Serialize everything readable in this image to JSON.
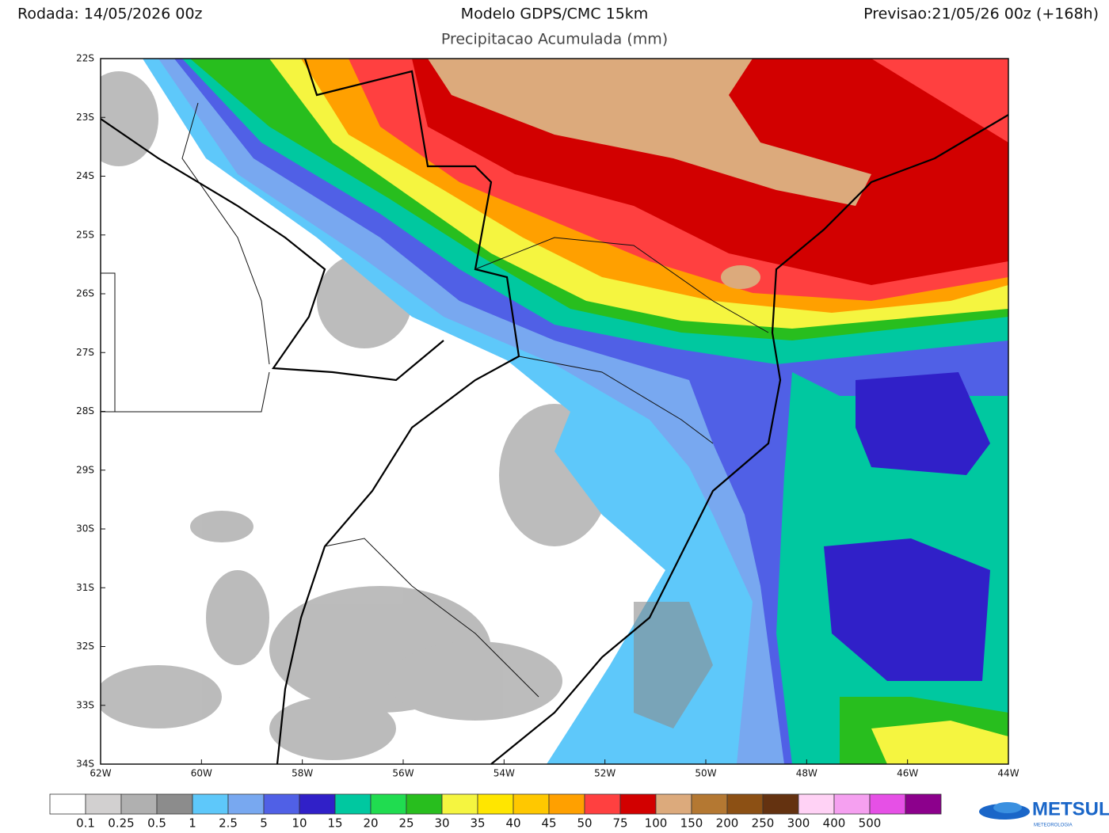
{
  "header": {
    "run": "Rodada: 14/05/2026 00z",
    "title": "Modelo GDPS/CMC 15km",
    "subtitle": "Precipitacao Acumulada (mm)",
    "forecast": "Previsao:21/05/26 00z (+168h)"
  },
  "map": {
    "lat_labels": [
      "22S",
      "23S",
      "24S",
      "25S",
      "26S",
      "27S",
      "28S",
      "29S",
      "30S",
      "31S",
      "32S",
      "33S",
      "34S"
    ],
    "lon_labels": [
      "62W",
      "60W",
      "58W",
      "56W",
      "54W",
      "52W",
      "50W",
      "48W",
      "46W",
      "44W"
    ]
  },
  "legend": {
    "labels": [
      "0.1",
      "0.25",
      "0.5",
      "1",
      "2.5",
      "5",
      "10",
      "15",
      "20",
      "25",
      "30",
      "35",
      "40",
      "45",
      "50",
      "75",
      "100",
      "150",
      "200",
      "250",
      "300",
      "400",
      "500"
    ],
    "colors": [
      "#ffffff",
      "#d2d0d0",
      "#b0b0b0",
      "#8c8c8c",
      "#5ec8fa",
      "#78a8f0",
      "#5060e6",
      "#3020c8",
      "#00c8a0",
      "#20dc50",
      "#28be1e",
      "#f5f540",
      "#ffe600",
      "#ffc800",
      "#ffa000",
      "#ff4040",
      "#d20000",
      "#dcaa7c",
      "#b47832",
      "#8c5014",
      "#643210",
      "#ffd2f5",
      "#f5a0f0",
      "#e650e6",
      "#8c008c"
    ]
  },
  "logo": {
    "name": "METSUL",
    "tagline": "METEOROLOGIA"
  }
}
